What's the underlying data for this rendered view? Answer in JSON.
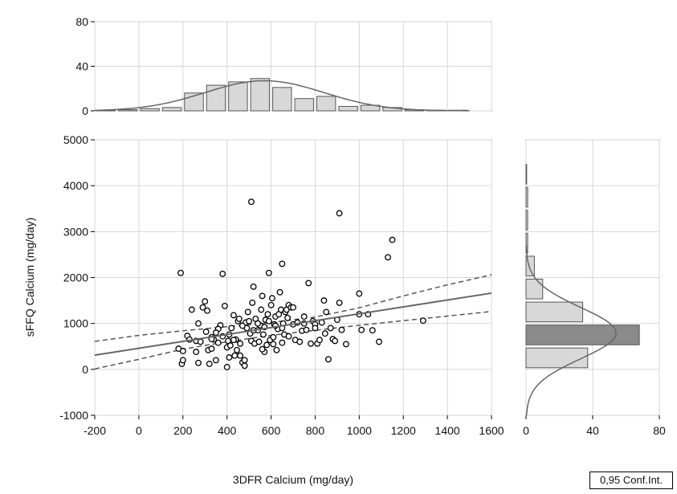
{
  "chart_data": [
    {
      "type": "scatter",
      "title": "",
      "xlabel": "3DFR Calcium (mg/day)",
      "ylabel": "sFFQ Calcium (mg/day)",
      "xlim": [
        -200,
        1600
      ],
      "ylim": [
        -1000,
        5000
      ],
      "xticks": [
        "-200",
        "0",
        "200",
        "400",
        "600",
        "800",
        "1000",
        "1200",
        "1400",
        "1600"
      ],
      "yticks": [
        "-1000",
        "0",
        "1000",
        "2000",
        "3000",
        "4000",
        "5000"
      ],
      "grid": true,
      "points": [
        [
          190,
          2100
        ],
        [
          380,
          2080
        ],
        [
          510,
          3650
        ],
        [
          910,
          3400
        ],
        [
          1150,
          2820
        ],
        [
          1130,
          2440
        ],
        [
          650,
          2300
        ],
        [
          590,
          2100
        ],
        [
          770,
          1880
        ],
        [
          1000,
          1650
        ],
        [
          180,
          450
        ],
        [
          195,
          120
        ],
        [
          200,
          400
        ],
        [
          220,
          730
        ],
        [
          240,
          1300
        ],
        [
          260,
          620
        ],
        [
          270,
          1000
        ],
        [
          280,
          600
        ],
        [
          290,
          1350
        ],
        [
          300,
          1480
        ],
        [
          305,
          820
        ],
        [
          310,
          1280
        ],
        [
          315,
          420
        ],
        [
          320,
          120
        ],
        [
          330,
          700
        ],
        [
          340,
          650
        ],
        [
          350,
          200
        ],
        [
          360,
          580
        ],
        [
          370,
          960
        ],
        [
          380,
          720
        ],
        [
          390,
          1380
        ],
        [
          400,
          480
        ],
        [
          405,
          620
        ],
        [
          410,
          760
        ],
        [
          415,
          520
        ],
        [
          420,
          900
        ],
        [
          430,
          1180
        ],
        [
          435,
          300
        ],
        [
          440,
          650
        ],
        [
          445,
          420
        ],
        [
          450,
          1050
        ],
        [
          455,
          1100
        ],
        [
          460,
          300
        ],
        [
          470,
          150
        ],
        [
          480,
          80
        ],
        [
          485,
          1020
        ],
        [
          490,
          900
        ],
        [
          495,
          1250
        ],
        [
          500,
          1050
        ],
        [
          505,
          780
        ],
        [
          510,
          620
        ],
        [
          515,
          1450
        ],
        [
          520,
          1800
        ],
        [
          525,
          560
        ],
        [
          530,
          1100
        ],
        [
          540,
          850
        ],
        [
          545,
          600
        ],
        [
          550,
          960
        ],
        [
          555,
          1300
        ],
        [
          560,
          1600
        ],
        [
          565,
          760
        ],
        [
          570,
          920
        ],
        [
          575,
          1080
        ],
        [
          580,
          530
        ],
        [
          585,
          1200
        ],
        [
          590,
          1050
        ],
        [
          595,
          640
        ],
        [
          600,
          1400
        ],
        [
          605,
          1550
        ],
        [
          610,
          700
        ],
        [
          615,
          980
        ],
        [
          620,
          1150
        ],
        [
          625,
          420
        ],
        [
          630,
          880
        ],
        [
          635,
          1200
        ],
        [
          640,
          1680
        ],
        [
          645,
          1300
        ],
        [
          650,
          580
        ],
        [
          655,
          1000
        ],
        [
          660,
          760
        ],
        [
          665,
          1250
        ],
        [
          670,
          1300
        ],
        [
          675,
          1120
        ],
        [
          680,
          1400
        ],
        [
          690,
          1350
        ],
        [
          700,
          980
        ],
        [
          710,
          640
        ],
        [
          720,
          1020
        ],
        [
          730,
          600
        ],
        [
          740,
          840
        ],
        [
          750,
          1150
        ],
        [
          760,
          860
        ],
        [
          780,
          560
        ],
        [
          790,
          1050
        ],
        [
          800,
          980
        ],
        [
          810,
          560
        ],
        [
          820,
          640
        ],
        [
          830,
          1020
        ],
        [
          840,
          1500
        ],
        [
          845,
          780
        ],
        [
          850,
          1250
        ],
        [
          860,
          220
        ],
        [
          870,
          900
        ],
        [
          880,
          660
        ],
        [
          890,
          620
        ],
        [
          900,
          1080
        ],
        [
          910,
          1450
        ],
        [
          920,
          860
        ],
        [
          940,
          550
        ],
        [
          1000,
          1200
        ],
        [
          1010,
          860
        ],
        [
          1040,
          1200
        ],
        [
          1060,
          850
        ],
        [
          1090,
          600
        ],
        [
          1290,
          1060
        ],
        [
          260,
          380
        ],
        [
          330,
          450
        ],
        [
          360,
          880
        ],
        [
          410,
          260
        ],
        [
          460,
          560
        ],
        [
          480,
          200
        ],
        [
          520,
          850
        ],
        [
          570,
          380
        ],
        [
          620,
          950
        ],
        [
          680,
          720
        ],
        [
          330,
          660
        ],
        [
          200,
          200
        ],
        [
          400,
          50
        ],
        [
          430,
          640
        ],
        [
          560,
          440
        ],
        [
          470,
          950
        ],
        [
          540,
          1000
        ],
        [
          610,
          550
        ],
        [
          700,
          1350
        ],
        [
          750,
          1000
        ],
        [
          800,
          900
        ],
        [
          350,
          800
        ],
        [
          230,
          650
        ],
        [
          270,
          140
        ],
        [
          650,
          900
        ]
      ],
      "fit_line": {
        "x": [
          -200,
          1600
        ],
        "y": [
          310,
          1660
        ]
      },
      "ci_upper": [
        [
          -200,
          610
        ],
        [
          0,
          740
        ],
        [
          200,
          840
        ],
        [
          400,
          930
        ],
        [
          600,
          1020
        ],
        [
          800,
          1140
        ],
        [
          1000,
          1340
        ],
        [
          1200,
          1600
        ],
        [
          1400,
          1840
        ],
        [
          1600,
          2060
        ]
      ],
      "ci_lower": [
        [
          -200,
          10
        ],
        [
          0,
          220
        ],
        [
          200,
          440
        ],
        [
          400,
          600
        ],
        [
          600,
          740
        ],
        [
          800,
          850
        ],
        [
          1000,
          960
        ],
        [
          1200,
          1060
        ],
        [
          1400,
          1160
        ],
        [
          1600,
          1260
        ]
      ],
      "legend": "0,95 Conf.Int."
    },
    {
      "type": "bar",
      "orientation": "vertical",
      "role": "x-marginal-histogram",
      "yticks": [
        "0",
        "40",
        "80"
      ],
      "ylim": [
        0,
        80
      ],
      "bin_edges": [
        -200,
        -100,
        0,
        100,
        200,
        300,
        400,
        500,
        600,
        700,
        800,
        900,
        1000,
        1100,
        1200,
        1300,
        1400,
        1500
      ],
      "values": [
        0,
        1,
        2,
        3,
        16,
        23,
        26,
        29,
        21,
        11,
        13,
        4,
        5,
        3,
        1,
        0,
        0
      ],
      "normal_curve": {
        "mean": 570,
        "sd": 270,
        "peak": 27
      }
    },
    {
      "type": "bar",
      "orientation": "horizontal",
      "role": "y-marginal-histogram",
      "xticks": [
        "0",
        "40",
        "80"
      ],
      "xlim": [
        0,
        80
      ],
      "bin_edges": [
        0,
        500,
        1000,
        1500,
        2000,
        2500,
        3000,
        3500,
        4000,
        4500
      ],
      "values": [
        37,
        68,
        34,
        10,
        5,
        1,
        1,
        1,
        0
      ],
      "normal_curve": {
        "mean": 790,
        "sd": 560,
        "peak": 54
      }
    }
  ]
}
